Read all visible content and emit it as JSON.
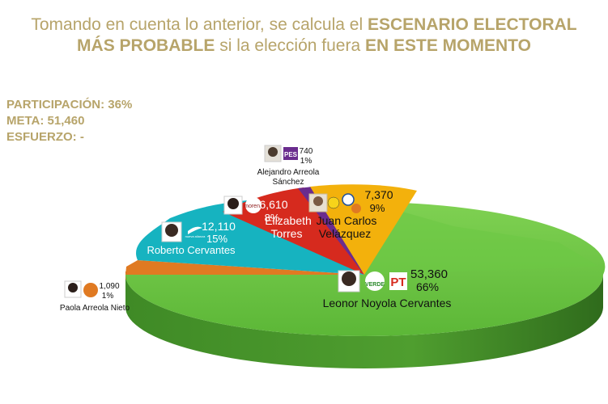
{
  "header": {
    "line1_plain": "Tomando en cuenta lo anterior, se calcula el ",
    "line1_bold": "ESCENARIO ELECTORAL",
    "line2_bold_a": "MÁS PROBABLE",
    "line2_plain": " si la elección fuera ",
    "line2_bold_b": "EN ESTE MOMENTO"
  },
  "stats": {
    "participacion": "PARTICIPACIÓN: 36%",
    "meta": "META: 51,460",
    "esfuerzo": "ESFUERZO: -"
  },
  "colors": {
    "green": "#66c43d",
    "orange_mc": "#e07a22",
    "teal": "#16b3c0",
    "red": "#d62a1e",
    "purple": "#6a2c8e",
    "yellow": "#f3b10c",
    "title": "#b7a46a"
  },
  "chart_data": {
    "type": "pie",
    "style": "3d",
    "slices": [
      {
        "candidate": "Leonor Noyola Cervantes",
        "votes": "53,360",
        "pct": "66%",
        "value": 53360,
        "color": "#66c43d"
      },
      {
        "candidate": "Paola Arreola Nieto",
        "votes": "1,090",
        "pct": "1%",
        "value": 1090,
        "color": "#e07a22"
      },
      {
        "candidate": "Roberto Cervantes",
        "votes": "12,110",
        "pct": "15%",
        "value": 12110,
        "color": "#16b3c0"
      },
      {
        "candidate": "Elizabeth Torres",
        "votes": "6,610",
        "pct": "8%",
        "value": 6610,
        "color": "#d62a1e"
      },
      {
        "candidate": "Alejandro Arreola Sánchez",
        "votes": "740",
        "pct": "1%",
        "value": 740,
        "color": "#6a2c8e"
      },
      {
        "candidate": "Juan Carlos Velázquez",
        "votes": "7,370",
        "pct": "9%",
        "value": 7370,
        "color": "#f3b10c"
      }
    ],
    "name_lines": {
      "leonor": "Leonor Noyola Cervantes",
      "paola": "Paola Arreola Nieto",
      "roberto": "Roberto Cervantes",
      "elizabeth_1": "Elizabeth",
      "elizabeth_2": "Torres",
      "alejandro_1": "Alejandro Arreola",
      "alejandro_2": "Sánchez",
      "juan_1": "Juan Carlos",
      "juan_2": "Velázquez"
    },
    "party_logos": {
      "leonor": [
        "VERDE",
        "PT"
      ],
      "paola": [
        "MC"
      ],
      "roberto": [
        "nueva alianza"
      ],
      "elizabeth": [
        "morena"
      ],
      "alejandro": [
        "PES"
      ],
      "juan": [
        "PRD",
        "PAN",
        "MC"
      ]
    }
  }
}
